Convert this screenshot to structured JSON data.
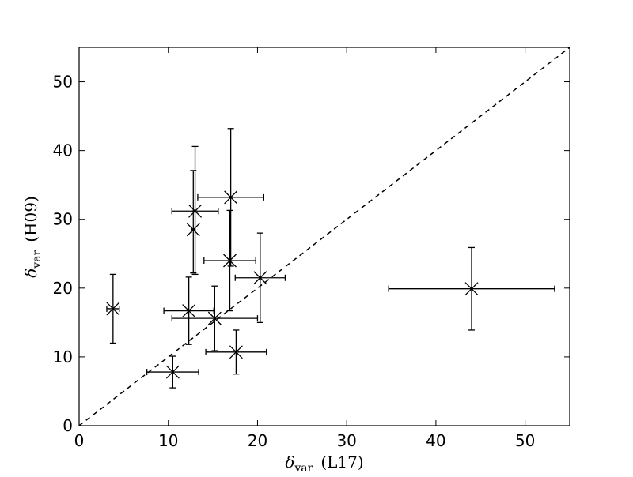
{
  "chart_data": {
    "type": "scatter",
    "title": "",
    "xlabel": {
      "symbol": "δ",
      "subscript": "var",
      "suffix": "(L17)"
    },
    "ylabel": {
      "symbol": "δ",
      "subscript": "var",
      "suffix": "(H09)"
    },
    "xlim": [
      0,
      55
    ],
    "ylim": [
      0,
      55
    ],
    "xticks": [
      0,
      10,
      20,
      30,
      40,
      50
    ],
    "yticks": [
      0,
      10,
      20,
      30,
      40,
      50
    ],
    "xtick_labels": [
      "0",
      "10",
      "20",
      "30",
      "40",
      "50"
    ],
    "ytick_labels": [
      "0",
      "10",
      "20",
      "30",
      "40",
      "50"
    ],
    "grid": false,
    "legend": "none",
    "reference_line": {
      "style": "dashed",
      "x": [
        0,
        55
      ],
      "y": [
        0,
        55
      ]
    },
    "marker": "x",
    "points": [
      {
        "x": 3.8,
        "y": 17.0,
        "xerr": [
          0.7,
          0.7
        ],
        "yerr": [
          5.0,
          5.0
        ]
      },
      {
        "x": 10.5,
        "y": 7.8,
        "xerr": [
          2.9,
          2.9
        ],
        "yerr": [
          2.3,
          2.3
        ]
      },
      {
        "x": 12.3,
        "y": 16.7,
        "xerr": [
          2.8,
          2.8
        ],
        "yerr": [
          4.9,
          4.9
        ]
      },
      {
        "x": 12.8,
        "y": 28.5,
        "xerr": [
          0.2,
          0.2
        ],
        "yerr": [
          6.3,
          8.6
        ]
      },
      {
        "x": 13.0,
        "y": 31.2,
        "xerr": [
          2.6,
          2.6
        ],
        "yerr": [
          9.2,
          9.4
        ]
      },
      {
        "x": 15.2,
        "y": 15.6,
        "xerr": [
          4.8,
          4.8
        ],
        "yerr": [
          4.7,
          4.7
        ]
      },
      {
        "x": 16.9,
        "y": 24.0,
        "xerr": [
          2.9,
          2.9
        ],
        "yerr": [
          7.3,
          7.3
        ]
      },
      {
        "x": 17.0,
        "y": 33.2,
        "xerr": [
          3.7,
          3.7
        ],
        "yerr": [
          10.0,
          10.0
        ]
      },
      {
        "x": 17.6,
        "y": 10.7,
        "xerr": [
          3.4,
          3.4
        ],
        "yerr": [
          3.2,
          3.2
        ]
      },
      {
        "x": 20.3,
        "y": 21.5,
        "xerr": [
          2.8,
          2.8
        ],
        "yerr": [
          6.5,
          6.5
        ]
      },
      {
        "x": 44.0,
        "y": 19.9,
        "xerr": [
          9.3,
          9.3
        ],
        "yerr": [
          6.0,
          6.0
        ]
      }
    ]
  }
}
